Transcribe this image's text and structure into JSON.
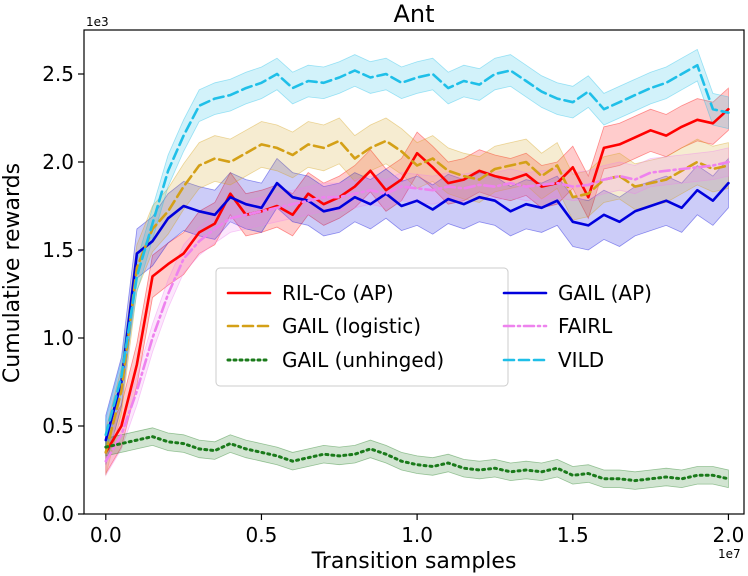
{
  "chart_data": {
    "type": "line",
    "title": "Ant",
    "xlabel": "Transition samples",
    "ylabel": "Cumulative rewards",
    "x_offset_label": "1e7",
    "y_offset_label": "1e3",
    "xlim": [
      -0.07,
      2.05
    ],
    "ylim": [
      0.0,
      2.75
    ],
    "xticks": [
      0.0,
      0.5,
      1.0,
      1.5,
      2.0
    ],
    "xtick_labels": [
      "0.0",
      "0.5",
      "1.0",
      "1.5",
      "2.0"
    ],
    "yticks": [
      0.0,
      0.5,
      1.0,
      1.5,
      2.0,
      2.5
    ],
    "ytick_labels": [
      "0.0",
      "0.5",
      "1.0",
      "1.5",
      "2.0",
      "2.5"
    ],
    "grid": false,
    "legend_position": "center-right",
    "series": [
      {
        "name": "RIL-Co (AP)",
        "color": "#ff0000",
        "style": "solid",
        "x": [
          0.0,
          0.05,
          0.1,
          0.15,
          0.2,
          0.25,
          0.3,
          0.35,
          0.4,
          0.45,
          0.5,
          0.55,
          0.6,
          0.65,
          0.7,
          0.75,
          0.8,
          0.85,
          0.9,
          0.95,
          1.0,
          1.05,
          1.1,
          1.15,
          1.2,
          1.25,
          1.3,
          1.35,
          1.4,
          1.45,
          1.5,
          1.55,
          1.6,
          1.65,
          1.7,
          1.75,
          1.8,
          1.85,
          1.9,
          1.95,
          2.0
        ],
        "y": [
          0.35,
          0.5,
          0.85,
          1.35,
          1.42,
          1.48,
          1.6,
          1.65,
          1.82,
          1.7,
          1.72,
          1.75,
          1.7,
          1.82,
          1.76,
          1.8,
          1.86,
          1.95,
          1.84,
          1.9,
          2.05,
          1.97,
          1.88,
          1.9,
          1.95,
          1.92,
          1.9,
          1.93,
          1.86,
          1.88,
          1.97,
          1.8,
          2.08,
          2.1,
          2.14,
          2.18,
          2.15,
          2.2,
          2.24,
          2.22,
          2.3
        ],
        "spread": 0.12
      },
      {
        "name": "GAIL (AP)",
        "color": "#0000dd",
        "style": "solid",
        "x": [
          0.0,
          0.05,
          0.1,
          0.15,
          0.2,
          0.25,
          0.3,
          0.35,
          0.4,
          0.45,
          0.5,
          0.55,
          0.6,
          0.65,
          0.7,
          0.75,
          0.8,
          0.85,
          0.9,
          0.95,
          1.0,
          1.05,
          1.1,
          1.15,
          1.2,
          1.25,
          1.3,
          1.35,
          1.4,
          1.45,
          1.5,
          1.55,
          1.6,
          1.65,
          1.7,
          1.75,
          1.8,
          1.85,
          1.9,
          1.95,
          2.0
        ],
        "y": [
          0.42,
          0.75,
          1.48,
          1.55,
          1.68,
          1.75,
          1.72,
          1.7,
          1.8,
          1.76,
          1.74,
          1.88,
          1.8,
          1.78,
          1.72,
          1.74,
          1.8,
          1.76,
          1.82,
          1.75,
          1.78,
          1.73,
          1.79,
          1.76,
          1.8,
          1.78,
          1.72,
          1.76,
          1.74,
          1.78,
          1.66,
          1.64,
          1.7,
          1.66,
          1.72,
          1.75,
          1.78,
          1.74,
          1.84,
          1.78,
          1.88
        ],
        "spread": 0.14
      },
      {
        "name": "GAIL (logistic)",
        "color": "#d4a017",
        "style": "dashed",
        "x": [
          0.0,
          0.05,
          0.1,
          0.15,
          0.2,
          0.25,
          0.3,
          0.35,
          0.4,
          0.45,
          0.5,
          0.55,
          0.6,
          0.65,
          0.7,
          0.75,
          0.8,
          0.85,
          0.9,
          0.95,
          1.0,
          1.05,
          1.1,
          1.15,
          1.2,
          1.25,
          1.3,
          1.35,
          1.4,
          1.45,
          1.5,
          1.55,
          1.6,
          1.65,
          1.7,
          1.75,
          1.8,
          1.85,
          1.9,
          1.95,
          2.0
        ],
        "y": [
          0.35,
          0.7,
          1.4,
          1.62,
          1.72,
          1.86,
          1.98,
          2.02,
          2.0,
          2.05,
          2.1,
          2.08,
          2.04,
          2.1,
          2.08,
          2.12,
          2.02,
          2.08,
          2.12,
          2.06,
          1.98,
          2.02,
          1.95,
          1.92,
          1.9,
          1.96,
          1.98,
          2.0,
          1.92,
          1.98,
          1.8,
          1.82,
          1.9,
          1.92,
          1.86,
          1.88,
          1.9,
          1.95,
          2.0,
          1.96,
          1.98
        ],
        "spread": 0.13
      },
      {
        "name": "FAIRL",
        "color": "#ee82ee",
        "style": "dashdot",
        "x": [
          0.0,
          0.05,
          0.1,
          0.15,
          0.2,
          0.25,
          0.3,
          0.35,
          0.4,
          0.45,
          0.5,
          0.55,
          0.6,
          0.65,
          0.7,
          0.75,
          0.8,
          0.85,
          0.9,
          0.95,
          1.0,
          1.05,
          1.1,
          1.15,
          1.2,
          1.25,
          1.3,
          1.35,
          1.4,
          1.45,
          1.5,
          1.55,
          1.6,
          1.65,
          1.7,
          1.75,
          1.8,
          1.85,
          1.9,
          1.95,
          2.0
        ],
        "y": [
          0.3,
          0.45,
          0.7,
          1.0,
          1.25,
          1.45,
          1.55,
          1.62,
          1.68,
          1.7,
          1.72,
          1.74,
          1.76,
          1.78,
          1.8,
          1.8,
          1.82,
          1.84,
          1.82,
          1.86,
          1.85,
          1.84,
          1.86,
          1.85,
          1.87,
          1.86,
          1.88,
          1.86,
          1.87,
          1.88,
          1.86,
          1.87,
          1.9,
          1.92,
          1.9,
          1.94,
          1.95,
          1.96,
          1.97,
          1.98,
          2.0
        ],
        "spread": 0.08
      },
      {
        "name": "VILD",
        "color": "#1fbfe8",
        "style": "dashed",
        "x": [
          0.0,
          0.05,
          0.1,
          0.15,
          0.2,
          0.25,
          0.3,
          0.35,
          0.4,
          0.45,
          0.5,
          0.55,
          0.6,
          0.65,
          0.7,
          0.75,
          0.8,
          0.85,
          0.9,
          0.95,
          1.0,
          1.05,
          1.1,
          1.15,
          1.2,
          1.25,
          1.3,
          1.35,
          1.4,
          1.45,
          1.5,
          1.55,
          1.6,
          1.65,
          1.7,
          1.75,
          1.8,
          1.85,
          1.9,
          1.95,
          2.0
        ],
        "y": [
          0.45,
          0.78,
          1.35,
          1.65,
          1.95,
          2.15,
          2.32,
          2.36,
          2.38,
          2.42,
          2.45,
          2.5,
          2.42,
          2.46,
          2.45,
          2.48,
          2.52,
          2.48,
          2.5,
          2.45,
          2.48,
          2.5,
          2.42,
          2.46,
          2.44,
          2.5,
          2.52,
          2.46,
          2.4,
          2.36,
          2.34,
          2.4,
          2.3,
          2.34,
          2.38,
          2.42,
          2.45,
          2.5,
          2.55,
          2.3,
          2.28
        ],
        "spread": 0.09
      },
      {
        "name": "GAIL (unhinged)",
        "color": "#1a7a1a",
        "style": "dotted",
        "x": [
          0.0,
          0.05,
          0.1,
          0.15,
          0.2,
          0.25,
          0.3,
          0.35,
          0.4,
          0.45,
          0.5,
          0.55,
          0.6,
          0.65,
          0.7,
          0.75,
          0.8,
          0.85,
          0.9,
          0.95,
          1.0,
          1.05,
          1.1,
          1.15,
          1.2,
          1.25,
          1.3,
          1.35,
          1.4,
          1.45,
          1.5,
          1.55,
          1.6,
          1.65,
          1.7,
          1.75,
          1.8,
          1.85,
          1.9,
          1.95,
          2.0
        ],
        "y": [
          0.38,
          0.4,
          0.42,
          0.44,
          0.41,
          0.4,
          0.37,
          0.36,
          0.4,
          0.37,
          0.35,
          0.33,
          0.3,
          0.32,
          0.34,
          0.33,
          0.34,
          0.37,
          0.34,
          0.3,
          0.28,
          0.27,
          0.29,
          0.26,
          0.25,
          0.26,
          0.24,
          0.25,
          0.24,
          0.26,
          0.22,
          0.23,
          0.2,
          0.2,
          0.19,
          0.2,
          0.21,
          0.2,
          0.22,
          0.22,
          0.2
        ],
        "spread": 0.05
      }
    ],
    "legend_layout": [
      [
        "RIL-Co (AP)",
        "GAIL (AP)"
      ],
      [
        "GAIL (logistic)",
        "FAIRL"
      ],
      [
        "GAIL (unhinged)",
        "VILD"
      ]
    ]
  }
}
